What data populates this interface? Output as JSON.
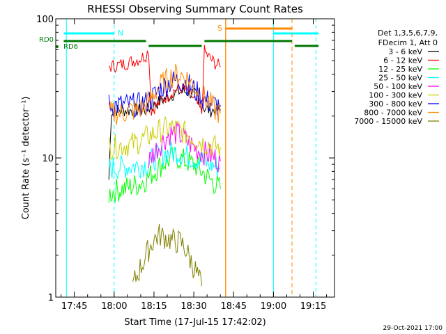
{
  "chart_data": {
    "type": "line",
    "title": "RHESSI Observing Summary Count Rates",
    "xlabel": "Start Time (17-Jul-15 17:42:02)",
    "ylabel": "Count Rate (s⁻¹ detector⁻¹)",
    "y_scale": "log",
    "ylim": [
      1,
      100
    ],
    "xlim": [
      "17:38",
      "19:23"
    ],
    "x_ticks": [
      "17:45",
      "18:00",
      "18:15",
      "18:30",
      "18:45",
      "19:00",
      "19:15"
    ],
    "y_ticks": [
      1,
      10,
      100
    ],
    "grid": false,
    "legend_position": "right",
    "legend_header": [
      "Det 1,3,5,6,7,9,",
      "FDecim 1, Att 0"
    ],
    "timestamp": "29-Oct-2021 17:00",
    "series": [
      {
        "name": "3 - 6 keV",
        "color": "#000000",
        "x": [
          "17:58",
          "17:59",
          "18:00",
          "18:03",
          "18:06",
          "18:09",
          "18:12",
          "18:15",
          "18:18",
          "18:21",
          "18:24",
          "18:27",
          "18:30",
          "18:32",
          "18:34",
          "18:36",
          "18:38",
          "18:39",
          "18:40"
        ],
        "values": [
          7,
          22,
          22,
          22,
          22,
          22,
          22,
          24,
          26,
          28,
          30,
          30,
          29,
          26,
          23,
          22,
          22,
          22,
          22
        ]
      },
      {
        "name": "6 - 12 keV",
        "color": "#ff0000",
        "x": [
          "17:58",
          "18:00",
          "18:03",
          "18:06",
          "18:09",
          "18:12",
          "18:13",
          "18:14",
          "18:16",
          "18:19",
          "18:22",
          "18:25",
          "18:28",
          "18:31",
          "18:33",
          "18:34",
          "18:36",
          "18:38",
          "18:40"
        ],
        "values": [
          45,
          46,
          47,
          49,
          51,
          55,
          60,
          22,
          24,
          27,
          30,
          32,
          30,
          25,
          21,
          58,
          52,
          48,
          45
        ]
      },
      {
        "name": "12 - 25 keV",
        "color": "#00ff00",
        "x": [
          "17:58",
          "18:00",
          "18:03",
          "18:06",
          "18:09",
          "18:12",
          "18:15",
          "18:18",
          "18:21",
          "18:24",
          "18:27",
          "18:30",
          "18:33",
          "18:36",
          "18:38",
          "18:40"
        ],
        "values": [
          5.5,
          5.8,
          6.0,
          6.2,
          6.5,
          7.0,
          8.0,
          9.0,
          9.8,
          10,
          9.5,
          9.0,
          8.0,
          7.0,
          6.5,
          6.0
        ]
      },
      {
        "name": "25 - 50 keV",
        "color": "#00ffff",
        "x": [
          "17:58",
          "18:00",
          "18:03",
          "18:06",
          "18:09",
          "18:12",
          "18:15",
          "18:18",
          "18:21",
          "18:24",
          "18:27",
          "18:30",
          "18:33",
          "18:36",
          "18:38",
          "18:40"
        ],
        "values": [
          8.5,
          8.5,
          8.6,
          8.7,
          8.8,
          9.0,
          9.8,
          10.5,
          11,
          11,
          10.5,
          10,
          9.5,
          9.0,
          8.8,
          8.5
        ]
      },
      {
        "name": "50 - 100 keV",
        "color": "#ff00ff",
        "x": [
          "18:13",
          "18:15",
          "18:18",
          "18:21",
          "18:24",
          "18:27",
          "18:30",
          "18:33",
          "18:36",
          "18:38",
          "18:40"
        ],
        "values": [
          9.5,
          11,
          13,
          15,
          15,
          13.5,
          12,
          11,
          10.5,
          10,
          9.5
        ]
      },
      {
        "name": "100 - 300 keV",
        "color": "#cccc00",
        "x": [
          "17:58",
          "18:00",
          "18:03",
          "18:06",
          "18:09",
          "18:12",
          "18:15",
          "18:18",
          "18:21",
          "18:24",
          "18:27",
          "18:30",
          "18:33",
          "18:36",
          "18:38",
          "18:40"
        ],
        "values": [
          12,
          12,
          12.3,
          12.5,
          13,
          14,
          15,
          16,
          16.5,
          16,
          15,
          14,
          13,
          12.5,
          12,
          12
        ]
      },
      {
        "name": "300 - 800 keV",
        "color": "#0000ff",
        "x": [
          "17:58",
          "18:00",
          "18:03",
          "18:06",
          "18:09",
          "18:12",
          "18:15",
          "18:18",
          "18:21",
          "18:24",
          "18:27",
          "18:30",
          "18:33",
          "18:36",
          "18:38",
          "18:40"
        ],
        "values": [
          24,
          24,
          24,
          24,
          24,
          25,
          28,
          32,
          35,
          36,
          35,
          31,
          27,
          25,
          24,
          24
        ]
      },
      {
        "name": "800 - 7000 keV",
        "color": "#ff8800",
        "x": [
          "17:58",
          "18:00",
          "18:03",
          "18:06",
          "18:09",
          "18:12",
          "18:15",
          "18:18",
          "18:21",
          "18:24",
          "18:27",
          "18:30",
          "18:33",
          "18:36",
          "18:38",
          "18:40"
        ],
        "values": [
          21,
          21,
          21,
          22,
          22,
          24,
          29,
          34,
          38,
          40,
          38,
          33,
          28,
          25,
          22,
          21
        ]
      },
      {
        "name": "7000 - 15000 keV",
        "color": "#808000",
        "x": [
          "18:07",
          "18:09",
          "18:11",
          "18:13",
          "18:15",
          "18:17",
          "18:19",
          "18:21",
          "18:23",
          "18:25",
          "18:27",
          "18:29",
          "18:31",
          "18:33"
        ],
        "values": [
          1.2,
          1.5,
          1.8,
          2.2,
          2.6,
          2.8,
          2.7,
          2.6,
          2.5,
          2.5,
          2.2,
          1.8,
          1.5,
          1.2
        ]
      }
    ],
    "annotations": [
      {
        "label": "N",
        "color": "#00ffff",
        "x_start": "17:41",
        "x_end": "18:00",
        "vline_start": "17:42",
        "vline_end": "18:00"
      },
      {
        "label": "N",
        "color": "#00ffff",
        "x_start": "19:00",
        "x_end": "19:17",
        "vline_start": "19:00",
        "vline_end": "19:16"
      },
      {
        "label": "S",
        "color": "#ff8800",
        "x_start": "18:42",
        "x_end": "19:07",
        "vline_start": "18:42",
        "vline_end": "19:07"
      },
      {
        "label": "RD0",
        "color": "#007700"
      },
      {
        "label": "RD6",
        "color": "#007700",
        "segments": [
          [
            "17:41",
            "18:12"
          ],
          [
            "18:13",
            "18:33"
          ],
          [
            "18:34",
            "19:07"
          ],
          [
            "19:08",
            "19:17"
          ]
        ]
      }
    ]
  }
}
